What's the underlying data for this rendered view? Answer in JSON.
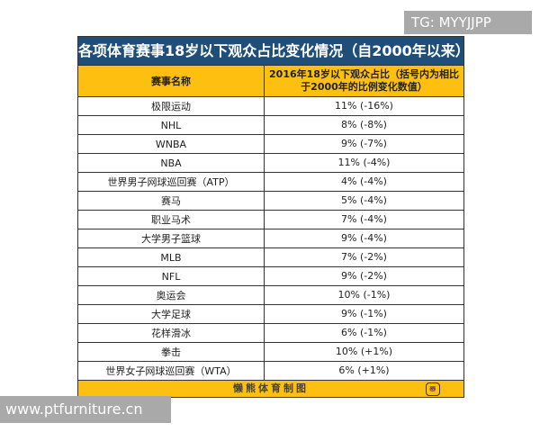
{
  "watermarks": {
    "top": "TG: MYYJJPP",
    "bottom": "www.ptfurniture.cn"
  },
  "table": {
    "title": "各项体育赛事18岁以下观众占比变化情况（自2000年以来）",
    "headers": [
      "赛事名称",
      "2016年18岁以下观众占比（括号内为相比于2000年的比例变化数值）"
    ],
    "rows": [
      [
        "极限运动",
        "11% (-16%)"
      ],
      [
        "NHL",
        "8% (-8%)"
      ],
      [
        "WNBA",
        "9% (-7%)"
      ],
      [
        "NBA",
        "11% (-4%)"
      ],
      [
        "世界男子网球巡回赛（ATP）",
        "4% (-4%)"
      ],
      [
        "赛马",
        "5% (-4%)"
      ],
      [
        "职业马术",
        "7% (-4%)"
      ],
      [
        "大学男子篮球",
        "9% (-4%)"
      ],
      [
        "MLB",
        "7% (-2%)"
      ],
      [
        "NFL",
        "9% (-2%)"
      ],
      [
        "奥运会",
        "10% (-1%)"
      ],
      [
        "大学足球",
        "9% (-1%)"
      ],
      [
        "花样滑冰",
        "6% (-1%)"
      ],
      [
        "拳击",
        "10% (+1%)"
      ],
      [
        "世界女子网球巡回赛（WTA）",
        "6% (+1%)"
      ]
    ],
    "footer": "懒熊体育制图",
    "logo_text": "懒熊体育"
  },
  "colors": {
    "title_bg": "#1f4e79",
    "header_bg": "#fdbf10"
  }
}
